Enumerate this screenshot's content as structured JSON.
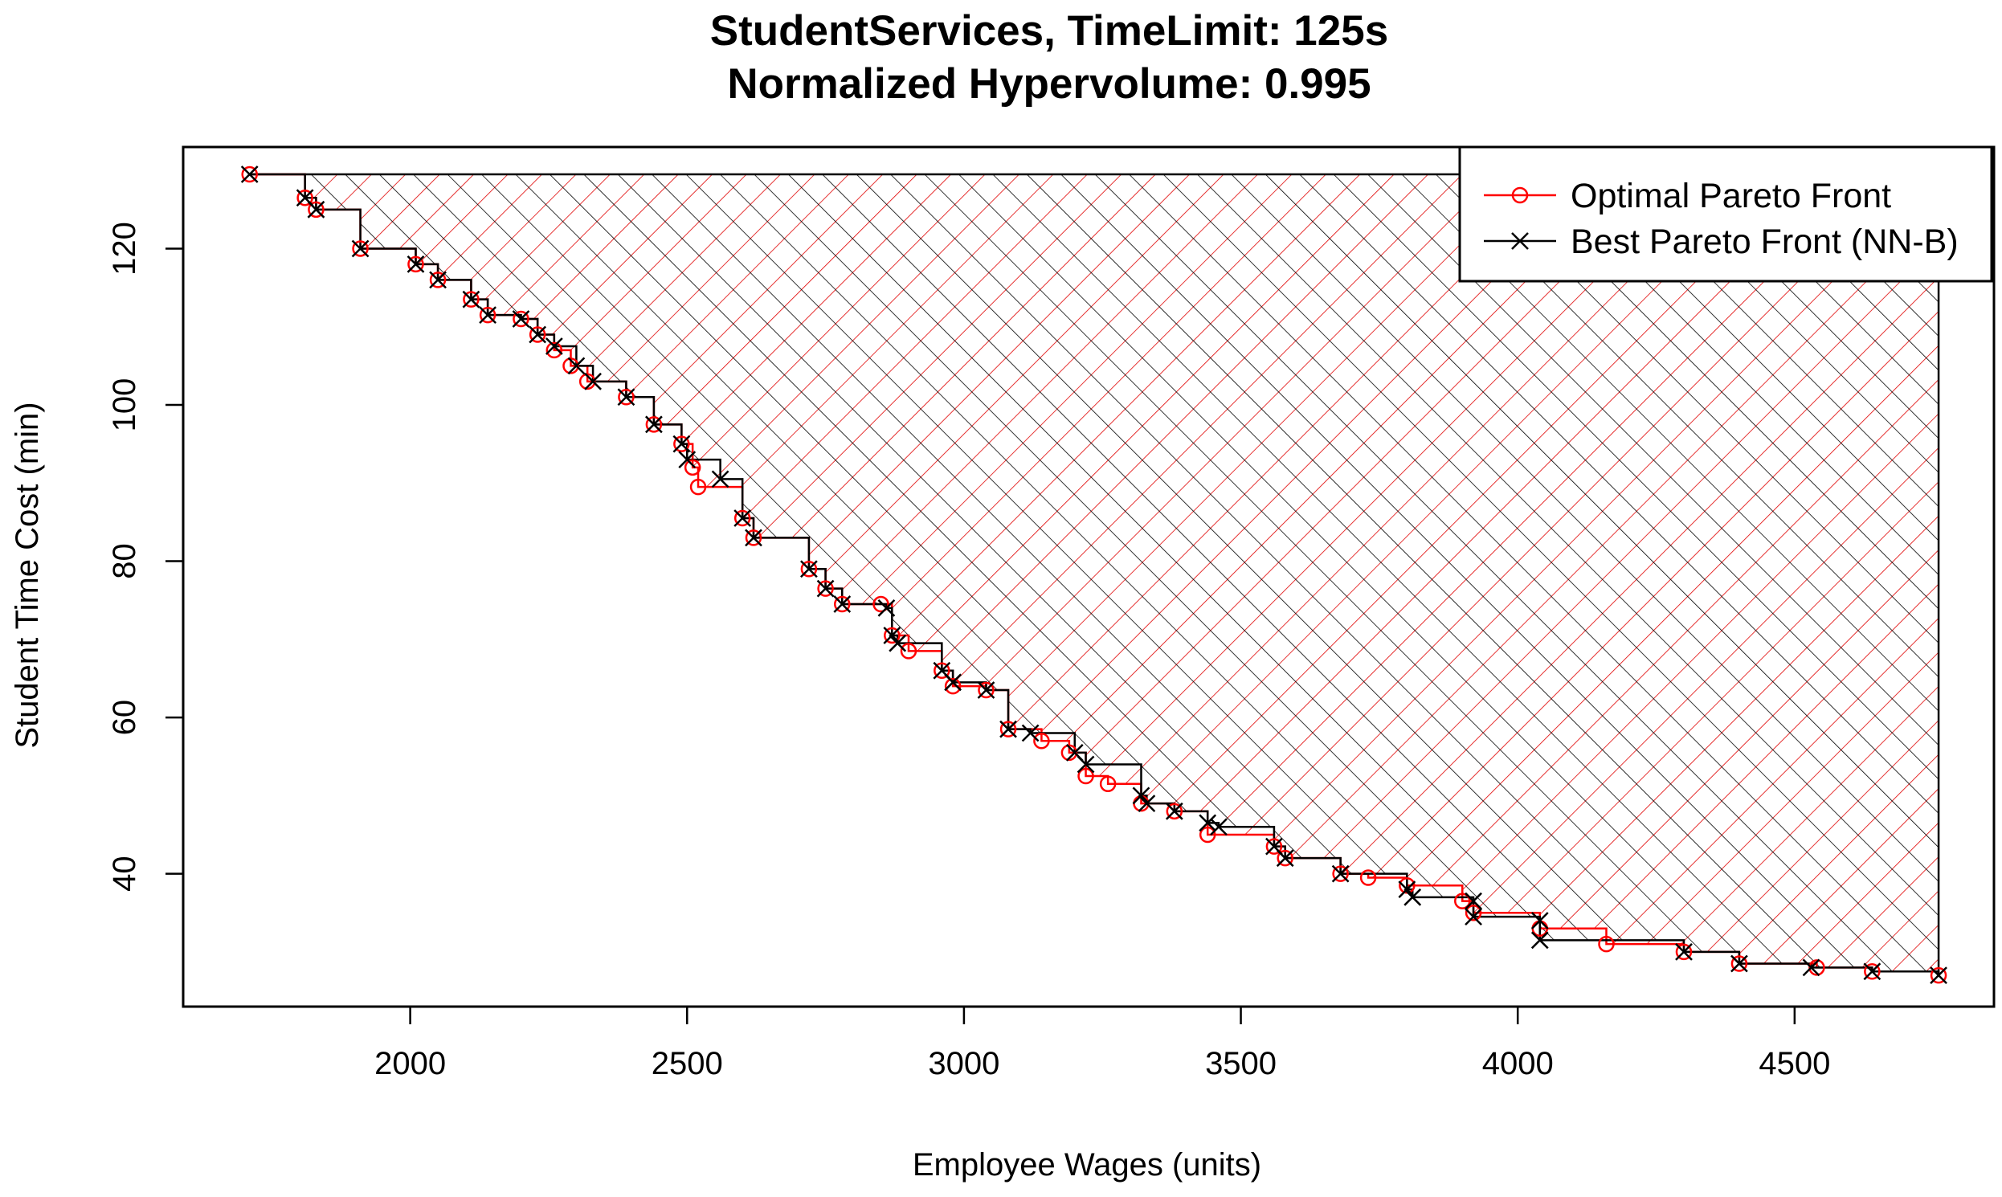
{
  "chart_data": {
    "type": "line",
    "title": "StudentServices, TimeLimit: 125s",
    "subtitle": "Normalized Hypervolume: 0.995",
    "xlabel": "Employee Wages (units)",
    "ylabel": "Student Time Cost (min)",
    "xlim": [
      1590,
      4860
    ],
    "ylim": [
      23,
      133
    ],
    "xticks": [
      2000,
      2500,
      3000,
      3500,
      4000,
      4500
    ],
    "yticks": [
      40,
      60,
      80,
      100,
      120
    ],
    "grid": false,
    "legend_position": "top-right",
    "reference_point": [
      4760,
      129.5
    ],
    "series": [
      {
        "name": "Optimal Pareto Front",
        "color": "#ff0000",
        "marker": "circle",
        "points": [
          [
            1710,
            129.5
          ],
          [
            1810,
            126.5
          ],
          [
            1830,
            125.0
          ],
          [
            1910,
            120.0
          ],
          [
            2010,
            118.0
          ],
          [
            2050,
            116.0
          ],
          [
            2110,
            113.5
          ],
          [
            2140,
            111.5
          ],
          [
            2200,
            111.0
          ],
          [
            2230,
            109.0
          ],
          [
            2260,
            107.0
          ],
          [
            2290,
            105.0
          ],
          [
            2320,
            103.0
          ],
          [
            2390,
            101.0
          ],
          [
            2440,
            97.5
          ],
          [
            2490,
            95.0
          ],
          [
            2510,
            92.0
          ],
          [
            2520,
            89.5
          ],
          [
            2600,
            85.5
          ],
          [
            2620,
            83.0
          ],
          [
            2720,
            79.0
          ],
          [
            2750,
            76.5
          ],
          [
            2780,
            74.5
          ],
          [
            2850,
            74.5
          ],
          [
            2870,
            70.5
          ],
          [
            2900,
            68.5
          ],
          [
            2960,
            66.0
          ],
          [
            2980,
            64.0
          ],
          [
            3040,
            63.5
          ],
          [
            3080,
            58.5
          ],
          [
            3140,
            57.0
          ],
          [
            3190,
            55.5
          ],
          [
            3220,
            52.5
          ],
          [
            3260,
            51.5
          ],
          [
            3320,
            49.0
          ],
          [
            3380,
            48.0
          ],
          [
            3440,
            45.0
          ],
          [
            3560,
            43.5
          ],
          [
            3580,
            42.0
          ],
          [
            3680,
            40.0
          ],
          [
            3730,
            39.5
          ],
          [
            3800,
            38.5
          ],
          [
            3900,
            36.5
          ],
          [
            3920,
            35.0
          ],
          [
            4040,
            33.0
          ],
          [
            4160,
            31.0
          ],
          [
            4300,
            30.0
          ],
          [
            4400,
            28.5
          ],
          [
            4540,
            28.0
          ],
          [
            4640,
            27.5
          ],
          [
            4760,
            27.0
          ]
        ]
      },
      {
        "name": "Best Pareto Front (NN-B)",
        "color": "#000000",
        "marker": "x",
        "points": [
          [
            1710,
            129.5
          ],
          [
            1810,
            126.5
          ],
          [
            1830,
            125.0
          ],
          [
            1910,
            120.0
          ],
          [
            2010,
            118.0
          ],
          [
            2050,
            116.0
          ],
          [
            2110,
            113.5
          ],
          [
            2140,
            111.5
          ],
          [
            2200,
            111.0
          ],
          [
            2230,
            109.0
          ],
          [
            2260,
            107.5
          ],
          [
            2300,
            105.0
          ],
          [
            2330,
            103.0
          ],
          [
            2390,
            101.0
          ],
          [
            2440,
            97.5
          ],
          [
            2490,
            95.0
          ],
          [
            2500,
            93.0
          ],
          [
            2560,
            90.5
          ],
          [
            2600,
            85.5
          ],
          [
            2620,
            83.0
          ],
          [
            2720,
            79.0
          ],
          [
            2750,
            76.5
          ],
          [
            2780,
            74.5
          ],
          [
            2860,
            74.0
          ],
          [
            2870,
            70.5
          ],
          [
            2880,
            69.5
          ],
          [
            2960,
            66.0
          ],
          [
            2980,
            64.5
          ],
          [
            3040,
            63.5
          ],
          [
            3080,
            58.5
          ],
          [
            3120,
            58.0
          ],
          [
            3200,
            55.5
          ],
          [
            3220,
            54.0
          ],
          [
            3320,
            50.0
          ],
          [
            3330,
            49.0
          ],
          [
            3380,
            48.0
          ],
          [
            3440,
            46.5
          ],
          [
            3460,
            46.0
          ],
          [
            3560,
            43.5
          ],
          [
            3580,
            42.0
          ],
          [
            3680,
            40.0
          ],
          [
            3800,
            38.0
          ],
          [
            3810,
            37.0
          ],
          [
            3920,
            36.5
          ],
          [
            3920,
            34.5
          ],
          [
            4040,
            34.0
          ],
          [
            4040,
            31.5
          ],
          [
            4300,
            30.0
          ],
          [
            4400,
            28.5
          ],
          [
            4530,
            28.0
          ],
          [
            4640,
            27.5
          ],
          [
            4760,
            27.0
          ]
        ]
      }
    ]
  }
}
